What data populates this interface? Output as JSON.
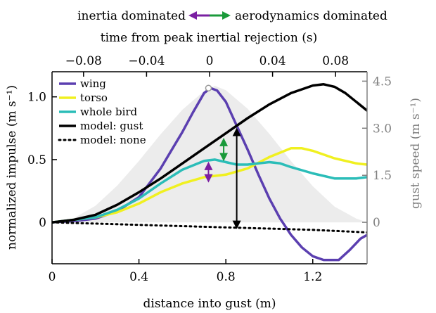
{
  "header": {
    "left_label": "inertia dominated",
    "right_label": "aerodynamics dominated"
  },
  "colors": {
    "wing": "#5b3fb0",
    "torso": "#f0f020",
    "whole_bird": "#2bbdb8",
    "model_gust": "#000000",
    "model_none": "#000000",
    "gust_area": "#ececec",
    "arrow_purple": "#7a1fa2",
    "arrow_green": "#1a9a3a",
    "right_axis": "#808080"
  },
  "chart_data": {
    "type": "line",
    "xlabel": "distance into gust (m)",
    "ylabel": "normalized impulse (m s⁻¹)",
    "y2label": "gust speed (m s⁻¹)",
    "top_xlabel": "time from peak inertial rejection (s)",
    "xlim": [
      0,
      1.45
    ],
    "ylim": [
      -0.33,
      1.2
    ],
    "y2lim": [
      -1.32,
      4.8
    ],
    "top_xlim": [
      -0.1,
      0.1
    ],
    "x_ticks": [
      {
        "value": 0,
        "label": "0"
      },
      {
        "value": 0.4,
        "label": "0.4"
      },
      {
        "value": 0.8,
        "label": "0.8"
      },
      {
        "value": 1.2,
        "label": "1.2"
      }
    ],
    "y_ticks": [
      {
        "value": 0,
        "label": "0"
      },
      {
        "value": 0.5,
        "label": "0.5"
      },
      {
        "value": 1.0,
        "label": "1.0"
      }
    ],
    "y2_ticks": [
      {
        "value": 0,
        "label": "0"
      },
      {
        "value": 1.5,
        "label": "1.5"
      },
      {
        "value": 3.0,
        "label": "3.0"
      },
      {
        "value": 4.5,
        "label": "4.5"
      }
    ],
    "top_ticks": [
      {
        "value": -0.08,
        "label": "−0.08"
      },
      {
        "value": -0.04,
        "label": "−0.04"
      },
      {
        "value": 0,
        "label": "0"
      },
      {
        "value": 0.04,
        "label": "0.04"
      },
      {
        "value": 0.08,
        "label": "0.08"
      }
    ],
    "series": [
      {
        "name": "wing",
        "color_key": "wing",
        "dashed": false,
        "points": [
          [
            0,
            0
          ],
          [
            0.1,
            0.01
          ],
          [
            0.2,
            0.03
          ],
          [
            0.3,
            0.09
          ],
          [
            0.4,
            0.2
          ],
          [
            0.5,
            0.43
          ],
          [
            0.6,
            0.72
          ],
          [
            0.65,
            0.88
          ],
          [
            0.7,
            1.03
          ],
          [
            0.73,
            1.07
          ],
          [
            0.76,
            1.05
          ],
          [
            0.8,
            0.96
          ],
          [
            0.85,
            0.77
          ],
          [
            0.9,
            0.58
          ],
          [
            0.95,
            0.38
          ],
          [
            1.0,
            0.19
          ],
          [
            1.05,
            0.03
          ],
          [
            1.1,
            -0.1
          ],
          [
            1.15,
            -0.2
          ],
          [
            1.2,
            -0.27
          ],
          [
            1.25,
            -0.3
          ],
          [
            1.32,
            -0.3
          ],
          [
            1.37,
            -0.22
          ],
          [
            1.42,
            -0.13
          ],
          [
            1.45,
            -0.1
          ]
        ]
      },
      {
        "name": "torso",
        "color_key": "torso",
        "dashed": false,
        "points": [
          [
            0,
            0
          ],
          [
            0.1,
            0.02
          ],
          [
            0.2,
            0.04
          ],
          [
            0.3,
            0.08
          ],
          [
            0.4,
            0.15
          ],
          [
            0.5,
            0.24
          ],
          [
            0.6,
            0.31
          ],
          [
            0.7,
            0.36
          ],
          [
            0.8,
            0.38
          ],
          [
            0.9,
            0.43
          ],
          [
            1.0,
            0.52
          ],
          [
            1.1,
            0.59
          ],
          [
            1.15,
            0.59
          ],
          [
            1.2,
            0.57
          ],
          [
            1.3,
            0.51
          ],
          [
            1.4,
            0.47
          ],
          [
            1.45,
            0.46
          ]
        ]
      },
      {
        "name": "whole bird",
        "color_key": "whole_bird",
        "dashed": false,
        "points": [
          [
            0,
            0
          ],
          [
            0.1,
            0.02
          ],
          [
            0.2,
            0.04
          ],
          [
            0.3,
            0.1
          ],
          [
            0.4,
            0.19
          ],
          [
            0.5,
            0.31
          ],
          [
            0.6,
            0.42
          ],
          [
            0.7,
            0.49
          ],
          [
            0.75,
            0.5
          ],
          [
            0.8,
            0.48
          ],
          [
            0.85,
            0.46
          ],
          [
            0.9,
            0.46
          ],
          [
            1.0,
            0.48
          ],
          [
            1.05,
            0.47
          ],
          [
            1.1,
            0.44
          ],
          [
            1.2,
            0.39
          ],
          [
            1.3,
            0.35
          ],
          [
            1.4,
            0.35
          ],
          [
            1.45,
            0.36
          ]
        ]
      },
      {
        "name": "model: gust",
        "color_key": "model_gust",
        "dashed": false,
        "points": [
          [
            0,
            0
          ],
          [
            0.1,
            0.02
          ],
          [
            0.2,
            0.06
          ],
          [
            0.3,
            0.14
          ],
          [
            0.4,
            0.24
          ],
          [
            0.5,
            0.35
          ],
          [
            0.6,
            0.47
          ],
          [
            0.7,
            0.59
          ],
          [
            0.8,
            0.71
          ],
          [
            0.9,
            0.83
          ],
          [
            1.0,
            0.94
          ],
          [
            1.1,
            1.03
          ],
          [
            1.15,
            1.06
          ],
          [
            1.2,
            1.09
          ],
          [
            1.25,
            1.1
          ],
          [
            1.3,
            1.08
          ],
          [
            1.35,
            1.03
          ],
          [
            1.4,
            0.96
          ],
          [
            1.45,
            0.89
          ]
        ]
      },
      {
        "name": "model: none",
        "color_key": "model_none",
        "dashed": true,
        "points": [
          [
            0,
            0
          ],
          [
            0.2,
            -0.01
          ],
          [
            0.4,
            -0.02
          ],
          [
            0.6,
            -0.03
          ],
          [
            0.8,
            -0.04
          ],
          [
            1.0,
            -0.05
          ],
          [
            1.2,
            -0.06
          ],
          [
            1.45,
            -0.08
          ]
        ]
      }
    ],
    "gust_profile": {
      "axis": "y2",
      "points": [
        [
          0,
          0
        ],
        [
          0.1,
          0.13
        ],
        [
          0.2,
          0.53
        ],
        [
          0.3,
          1.17
        ],
        [
          0.4,
          1.96
        ],
        [
          0.5,
          2.81
        ],
        [
          0.6,
          3.59
        ],
        [
          0.7,
          4.19
        ],
        [
          0.75,
          4.35
        ],
        [
          0.8,
          4.21
        ],
        [
          0.9,
          3.62
        ],
        [
          1.0,
          2.82
        ],
        [
          1.1,
          1.95
        ],
        [
          1.2,
          1.15
        ],
        [
          1.3,
          0.5
        ],
        [
          1.4,
          0.12
        ],
        [
          1.45,
          0
        ]
      ]
    },
    "peak_marker": {
      "x": 0.72,
      "y": 1.07
    },
    "annotations": [
      {
        "type": "double_arrow",
        "color_key": "model_gust",
        "x": 0.85,
        "y_start": -0.02,
        "y_end": 0.72
      },
      {
        "type": "double_arrow",
        "color_key": "whole_bird_arrow",
        "color": "#1a9a3a",
        "x": 0.79,
        "y_start": 0.52,
        "y_end": 0.64
      },
      {
        "type": "double_arrow",
        "color_key": "arrow_purple",
        "x": 0.72,
        "y_start": 0.35,
        "y_end": 0.45
      }
    ]
  }
}
